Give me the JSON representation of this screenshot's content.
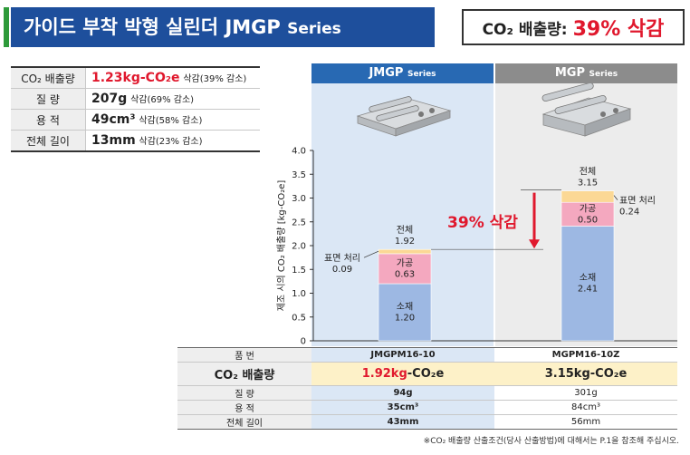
{
  "header": {
    "title": "가이드 부착 박형 실린더 JMGP",
    "title_series": "Series",
    "co2_label": "CO₂ 배출량:",
    "co2_value": "39% 삭감"
  },
  "summary_table": [
    {
      "label": "CO₂ 배출량",
      "value": "1.23kg-CO₂e",
      "note": "삭감(39% 감소)"
    },
    {
      "label": "질 량",
      "value": "207g",
      "note": "삭감(69% 감소)"
    },
    {
      "label": "용 적",
      "value": "49cm³",
      "note": "삭감(58% 감소)"
    },
    {
      "label": "전체 길이",
      "value": "13mm",
      "note": "삭감(23% 감소)"
    }
  ],
  "products": [
    {
      "name": "JMGP",
      "series": "Series"
    },
    {
      "name": "MGP",
      "series": "Series"
    }
  ],
  "colors": {
    "brand_blue": "#1e4f9c",
    "accent_green": "#2e9a3a",
    "red": "#e0182d",
    "jmgp_bg": "#dbe7f5",
    "mgp_bg": "#ececec",
    "material": "#9db8e3",
    "processing": "#f4a8bf",
    "surface": "#fbd895",
    "mgp_header": "#8c8c8c",
    "jmgp_header": "#2869b3"
  },
  "chart_data": {
    "type": "bar",
    "stacked": true,
    "ylabel": "제조 시의 CO₂ 배출량 [kg-CO₂e]",
    "ylim": [
      0,
      4.0
    ],
    "yticks": [
      "0",
      "0.5",
      "1.0",
      "1.5",
      "2.0",
      "2.5",
      "3.0",
      "3.5",
      "4.0"
    ],
    "categories": [
      "JMGPM16-10",
      "MGPM16-10Z"
    ],
    "series": [
      {
        "name": "소재",
        "values": [
          1.2,
          2.41
        ],
        "labels": [
          "1.20",
          "2.41"
        ]
      },
      {
        "name": "가공",
        "values": [
          0.63,
          0.5
        ],
        "labels": [
          "0.63",
          "0.50"
        ]
      },
      {
        "name": "표면 처리",
        "values": [
          0.09,
          0.24
        ],
        "labels": [
          "0.09",
          "0.24"
        ]
      }
    ],
    "totals": [
      1.92,
      3.15
    ],
    "total_label": "전체",
    "total_labels": [
      "1.92",
      "3.15"
    ],
    "annotation": "39% 삭감"
  },
  "bottom_table": {
    "rows": [
      {
        "label": "품 번",
        "jmgp": "JMGPM16-10",
        "mgp": "MGPM16-10Z"
      },
      {
        "label": "CO₂ 배출량",
        "jmgp_value": "1.92kg",
        "jmgp_unit": "-CO₂e",
        "mgp": "3.15kg-CO₂e"
      },
      {
        "label": "질 량",
        "jmgp": "94g",
        "mgp": "301g"
      },
      {
        "label": "용 적",
        "jmgp": "35cm³",
        "mgp": "84cm³"
      },
      {
        "label": "전체 길이",
        "jmgp": "43mm",
        "mgp": "56mm"
      }
    ]
  },
  "footnote": "※CO₂ 배출량 산출조건(당사 산출방법)에 대해서는 P.1을 참조해 주십시오."
}
